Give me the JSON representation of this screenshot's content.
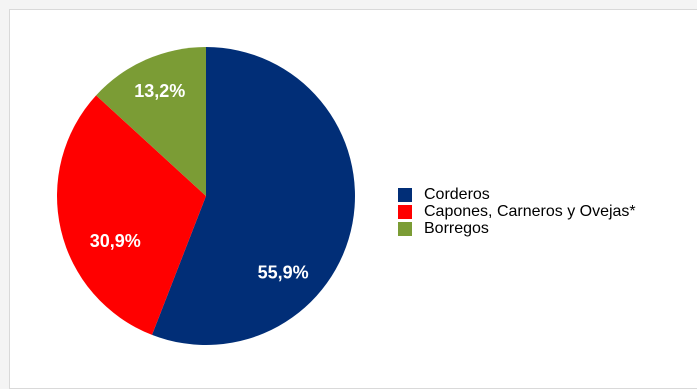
{
  "chart_data": {
    "type": "pie",
    "categories": [
      "Corderos",
      "Capones, Carneros y Ovejas*",
      "Borregos"
    ],
    "values": [
      55.9,
      30.9,
      13.2
    ],
    "data_labels": [
      "55,9%",
      "30,9%",
      "13,2%"
    ],
    "colors": [
      "#012e77",
      "#ff0000",
      "#7b9c35"
    ],
    "start_angle_deg": 0,
    "direction": "clockwise",
    "legend_placement": "right"
  }
}
